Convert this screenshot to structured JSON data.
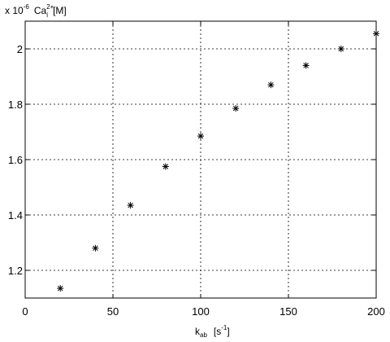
{
  "chart_data": {
    "type": "scatter",
    "marker": "asterisk",
    "grid": true,
    "xlim": [
      0,
      200
    ],
    "ylim": [
      1.1,
      2.1
    ],
    "xticks": [
      0,
      50,
      100,
      150,
      200
    ],
    "yticks": [
      1.2,
      1.4,
      1.6,
      1.8,
      2.0
    ],
    "xtick_labels": [
      "0",
      "50",
      "100",
      "150",
      "200"
    ],
    "ytick_labels": [
      "1.2",
      "1.4",
      "1.6",
      "1.8",
      "2"
    ],
    "y_exponent": {
      "base": "x 10",
      "power": "-6"
    },
    "ylabel": {
      "main": "Ca",
      "sup": "2+",
      "sub": "i",
      "unit": "[M]"
    },
    "xlabel": {
      "main": "k",
      "sub": "ab",
      "unit_prefix": "[s",
      "unit_sup": "-1",
      "unit_suffix": "]"
    },
    "series": [
      {
        "x": [
          20,
          40,
          60,
          80,
          100,
          120,
          140,
          160,
          180,
          200
        ],
        "y": [
          1.135,
          1.28,
          1.435,
          1.575,
          1.685,
          1.785,
          1.87,
          1.94,
          2.0,
          2.055
        ]
      }
    ],
    "colors": {
      "marker": "#000000",
      "axes": "#000000",
      "background": "#ffffff"
    }
  }
}
